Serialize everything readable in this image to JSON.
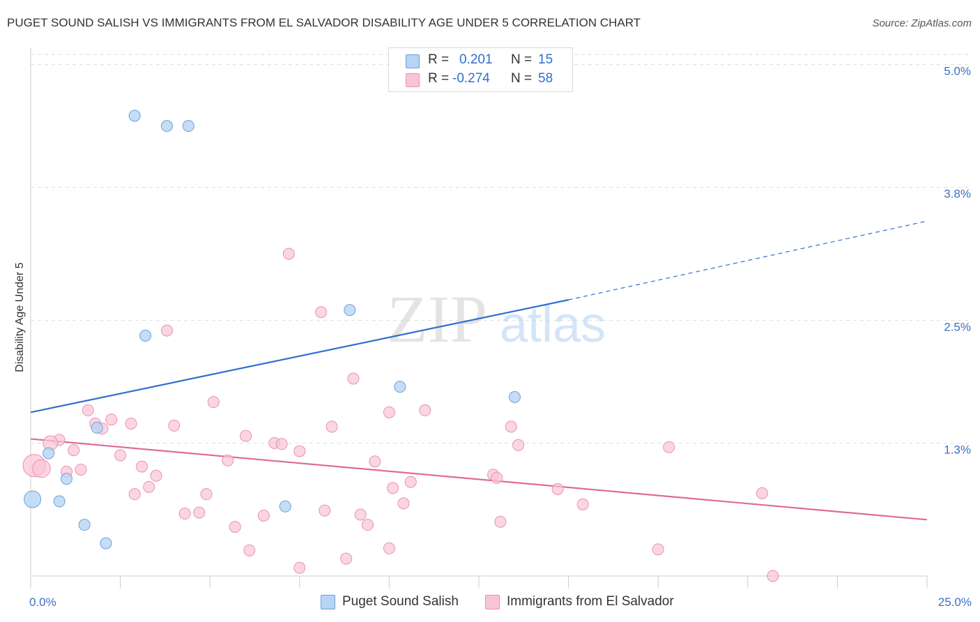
{
  "title": "PUGET SOUND SALISH VS IMMIGRANTS FROM EL SALVADOR DISABILITY AGE UNDER 5 CORRELATION CHART",
  "source": "Source: ZipAtlas.com",
  "watermark": {
    "zip": "ZIP",
    "atlas": "atlas"
  },
  "legend": {
    "series1": {
      "r_label": "R =",
      "r_value": "0.201",
      "n_label": "N =",
      "n_value": "15"
    },
    "series2": {
      "r_label": "R =",
      "r_value": "-0.274",
      "n_label": "N =",
      "n_value": "58"
    }
  },
  "bottom_legend": {
    "series1": "Puget Sound Salish",
    "series2": "Immigrants from El Salvador"
  },
  "colors": {
    "blue_fill": "#b8d4f5",
    "blue_stroke": "#6e9fd6",
    "blue_line": "#2e6fd0",
    "pink_fill": "#f9c4d5",
    "pink_stroke": "#e891ad",
    "pink_line": "#e0699a",
    "tick_label": "#3b6fc4",
    "grid": "#dddddd"
  },
  "chart_data": {
    "type": "scatter",
    "title": "PUGET SOUND SALISH VS IMMIGRANTS FROM EL SALVADOR DISABILITY AGE UNDER 5 CORRELATION CHART",
    "xlabel": "",
    "ylabel": "Disability Age Under 5",
    "xlim": [
      0,
      25
    ],
    "ylim": [
      0,
      5.1
    ],
    "x_tick_labels": [
      "0.0%",
      "25.0%"
    ],
    "y_ticks": [
      1.3,
      2.5,
      3.8,
      5.0
    ],
    "y_tick_labels": [
      "1.3%",
      "2.5%",
      "3.8%",
      "5.0%"
    ],
    "grid": true,
    "legend_position": "top-center",
    "series": [
      {
        "name": "Puget Sound Salish",
        "color": "#b8d4f5",
        "R": 0.201,
        "N": 15,
        "trend": {
          "x0": 0,
          "y0": 1.6,
          "x1": 15,
          "y1": 2.7,
          "dash_to_x": 25,
          "dash_to_y": 3.47
        },
        "points": [
          {
            "x": 2.9,
            "y": 4.5,
            "s": 1
          },
          {
            "x": 3.8,
            "y": 4.4,
            "s": 1
          },
          {
            "x": 4.4,
            "y": 4.4,
            "s": 1
          },
          {
            "x": 8.9,
            "y": 2.6,
            "s": 1
          },
          {
            "x": 3.2,
            "y": 2.35,
            "s": 1
          },
          {
            "x": 10.3,
            "y": 1.85,
            "s": 1
          },
          {
            "x": 13.5,
            "y": 1.75,
            "s": 1
          },
          {
            "x": 1.85,
            "y": 1.45,
            "s": 1
          },
          {
            "x": 0.5,
            "y": 1.2,
            "s": 1
          },
          {
            "x": 1.0,
            "y": 0.95,
            "s": 1
          },
          {
            "x": 0.05,
            "y": 0.75,
            "s": 1.5
          },
          {
            "x": 0.8,
            "y": 0.73,
            "s": 1
          },
          {
            "x": 7.1,
            "y": 0.68,
            "s": 1
          },
          {
            "x": 1.5,
            "y": 0.5,
            "s": 1
          },
          {
            "x": 2.1,
            "y": 0.32,
            "s": 1
          }
        ]
      },
      {
        "name": "Immigrants from El Salvador",
        "color": "#f9c4d5",
        "R": -0.274,
        "N": 58,
        "trend": {
          "x0": 0,
          "y0": 1.34,
          "x1": 25,
          "y1": 0.55
        },
        "points": [
          {
            "x": 7.2,
            "y": 3.15,
            "s": 1
          },
          {
            "x": 8.1,
            "y": 2.58,
            "s": 1
          },
          {
            "x": 3.8,
            "y": 2.4,
            "s": 1
          },
          {
            "x": 9.0,
            "y": 1.93,
            "s": 1
          },
          {
            "x": 5.1,
            "y": 1.7,
            "s": 1
          },
          {
            "x": 1.6,
            "y": 1.62,
            "s": 1
          },
          {
            "x": 10.0,
            "y": 1.6,
            "s": 1
          },
          {
            "x": 11.0,
            "y": 1.62,
            "s": 1
          },
          {
            "x": 2.25,
            "y": 1.53,
            "s": 1
          },
          {
            "x": 2.8,
            "y": 1.49,
            "s": 1
          },
          {
            "x": 1.8,
            "y": 1.49,
            "s": 1
          },
          {
            "x": 2.0,
            "y": 1.44,
            "s": 1
          },
          {
            "x": 4.0,
            "y": 1.47,
            "s": 1
          },
          {
            "x": 8.4,
            "y": 1.46,
            "s": 1
          },
          {
            "x": 13.4,
            "y": 1.46,
            "s": 1
          },
          {
            "x": 6.0,
            "y": 1.37,
            "s": 1
          },
          {
            "x": 0.8,
            "y": 1.33,
            "s": 1
          },
          {
            "x": 0.55,
            "y": 1.3,
            "s": 1.3
          },
          {
            "x": 6.8,
            "y": 1.3,
            "s": 1
          },
          {
            "x": 7.0,
            "y": 1.29,
            "s": 1
          },
          {
            "x": 13.6,
            "y": 1.28,
            "s": 1
          },
          {
            "x": 17.8,
            "y": 1.26,
            "s": 1
          },
          {
            "x": 1.2,
            "y": 1.23,
            "s": 1
          },
          {
            "x": 7.5,
            "y": 1.22,
            "s": 1
          },
          {
            "x": 2.5,
            "y": 1.18,
            "s": 1
          },
          {
            "x": 5.5,
            "y": 1.13,
            "s": 1
          },
          {
            "x": 9.6,
            "y": 1.12,
            "s": 1
          },
          {
            "x": 0.1,
            "y": 1.08,
            "s": 2
          },
          {
            "x": 0.3,
            "y": 1.05,
            "s": 1.6
          },
          {
            "x": 3.1,
            "y": 1.07,
            "s": 1
          },
          {
            "x": 1.4,
            "y": 1.04,
            "s": 1
          },
          {
            "x": 1.0,
            "y": 1.02,
            "s": 1
          },
          {
            "x": 12.9,
            "y": 0.99,
            "s": 1
          },
          {
            "x": 3.5,
            "y": 0.98,
            "s": 1
          },
          {
            "x": 13.0,
            "y": 0.96,
            "s": 1
          },
          {
            "x": 10.6,
            "y": 0.92,
            "s": 1
          },
          {
            "x": 3.3,
            "y": 0.87,
            "s": 1
          },
          {
            "x": 10.1,
            "y": 0.86,
            "s": 1
          },
          {
            "x": 14.7,
            "y": 0.85,
            "s": 1
          },
          {
            "x": 2.9,
            "y": 0.8,
            "s": 1
          },
          {
            "x": 4.9,
            "y": 0.8,
            "s": 1
          },
          {
            "x": 20.4,
            "y": 0.81,
            "s": 1
          },
          {
            "x": 10.4,
            "y": 0.71,
            "s": 1
          },
          {
            "x": 15.4,
            "y": 0.7,
            "s": 1
          },
          {
            "x": 8.2,
            "y": 0.64,
            "s": 1
          },
          {
            "x": 4.3,
            "y": 0.61,
            "s": 1
          },
          {
            "x": 4.7,
            "y": 0.62,
            "s": 1
          },
          {
            "x": 6.5,
            "y": 0.59,
            "s": 1
          },
          {
            "x": 9.2,
            "y": 0.6,
            "s": 1
          },
          {
            "x": 13.1,
            "y": 0.53,
            "s": 1
          },
          {
            "x": 9.4,
            "y": 0.5,
            "s": 1
          },
          {
            "x": 5.7,
            "y": 0.48,
            "s": 1
          },
          {
            "x": 10.0,
            "y": 0.27,
            "s": 1
          },
          {
            "x": 6.1,
            "y": 0.25,
            "s": 1
          },
          {
            "x": 17.5,
            "y": 0.26,
            "s": 1
          },
          {
            "x": 8.8,
            "y": 0.17,
            "s": 1
          },
          {
            "x": 7.5,
            "y": 0.08,
            "s": 1
          },
          {
            "x": 20.7,
            "y": 0.0,
            "s": 1
          }
        ]
      }
    ]
  }
}
